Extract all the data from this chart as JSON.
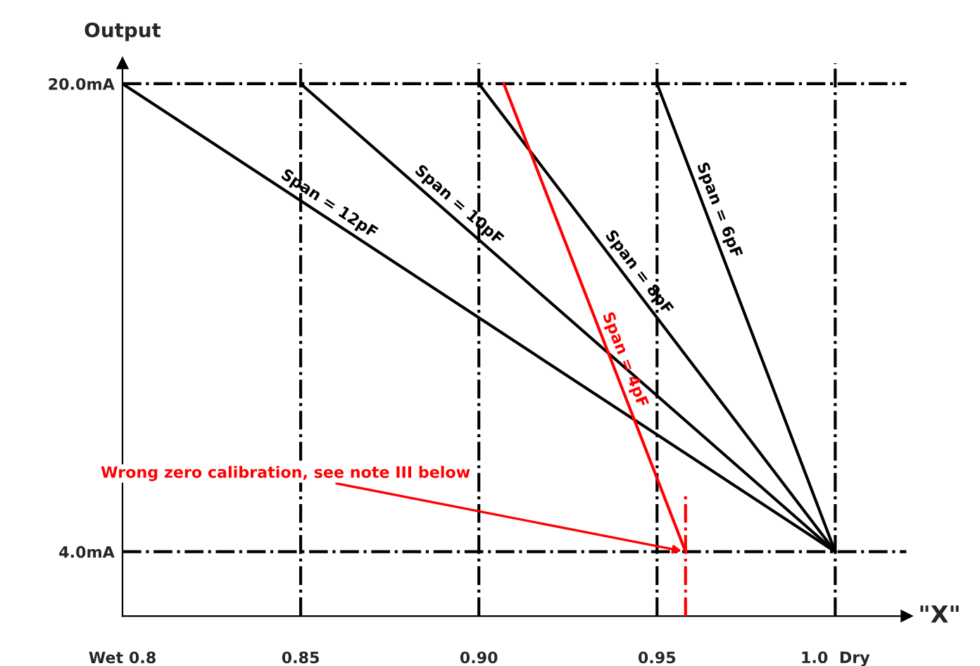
{
  "chart_data": {
    "type": "line",
    "xlabel": "\"X\"",
    "ylabel": "Output",
    "xlim": [
      0.8,
      1.02
    ],
    "ylim": [
      1.8,
      20.7
    ],
    "xticks": [
      {
        "value": 0.8,
        "label": "Wet 0.8"
      },
      {
        "value": 0.85,
        "label": "0.85"
      },
      {
        "value": 0.9,
        "label": "0.90"
      },
      {
        "value": 0.95,
        "label": "0.95"
      },
      {
        "value": 1.0,
        "label": "1.0  Dry"
      }
    ],
    "yticks": [
      {
        "value": 4,
        "label": "4.0mA"
      },
      {
        "value": 20,
        "label": "20.0mA"
      }
    ],
    "grid": false,
    "legend": false,
    "series": [
      {
        "name": "Span = 12pF",
        "color": "#000000",
        "x": [
          0.8,
          1.0
        ],
        "values": [
          20,
          4
        ]
      },
      {
        "name": "Span = 10pF",
        "color": "#000000",
        "x": [
          0.85,
          1.0
        ],
        "values": [
          20,
          4
        ]
      },
      {
        "name": "Span = 8pF",
        "color": "#000000",
        "x": [
          0.9,
          1.0
        ],
        "values": [
          20,
          4
        ]
      },
      {
        "name": "Span = 6pF",
        "color": "#000000",
        "x": [
          0.95,
          1.0
        ],
        "values": [
          20,
          4
        ]
      },
      {
        "name": "Span = 4pF",
        "color": "#ff0000",
        "x": [
          0.907,
          0.958
        ],
        "values": [
          20,
          4
        ]
      },
      {
        "color": "#ff0000",
        "x": [
          0.958,
          0.958
        ],
        "values": [
          1.8,
          5.9
        ],
        "line_style": "dashdot"
      }
    ],
    "ref_lines": [
      {
        "axis": "x",
        "value": 0.85,
        "color": "#000000",
        "line_style": "dashdot"
      },
      {
        "axis": "x",
        "value": 0.9,
        "color": "#000000",
        "line_style": "dashdot"
      },
      {
        "axis": "x",
        "value": 0.95,
        "color": "#000000",
        "line_style": "dashdot"
      },
      {
        "axis": "x",
        "value": 1.0,
        "color": "#000000",
        "line_style": "dashdot"
      },
      {
        "axis": "y",
        "value": 4,
        "color": "#000000",
        "line_style": "dashdot"
      },
      {
        "axis": "y",
        "value": 20,
        "color": "#000000",
        "line_style": "dashdot"
      }
    ],
    "annotations": [
      {
        "text": "Wrong zero calibration, see note III below",
        "x": 0.958,
        "y": 4
      }
    ]
  }
}
